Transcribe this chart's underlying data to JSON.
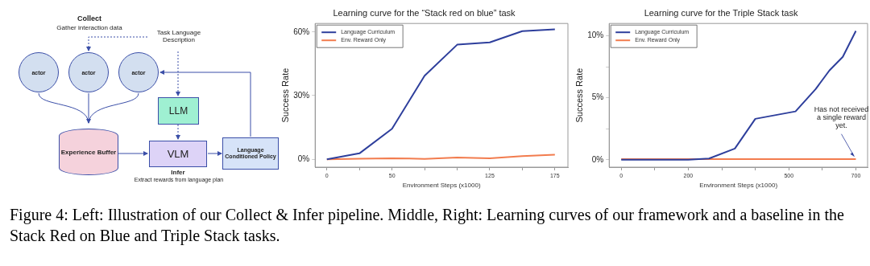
{
  "chart_data": [
    {
      "type": "other",
      "annotations": [
        "Collect",
        "Gather interaction data",
        "Task Language Description",
        "actor",
        "actor",
        "actor",
        "LLM",
        "Experience Buffer",
        "VLM",
        "Language Conditioned Policy",
        "Infer",
        "Extract rewards from language plan",
        "Figure 4: Left: Illustration of our Collect & Infer pipeline. Middle, Right: Learning curves of our framework and a baseline in the Stack Red on Blue and Triple Stack tasks."
      ]
    },
    {
      "type": "line",
      "title": "Learning curve for the “Stack red on blue” task",
      "xlabel": "Environment Steps (x1000)",
      "ylabel": "Success Rate",
      "legend": "top left",
      "marker": "none",
      "line_style": "solid",
      "grid": false,
      "xlim": [
        -9,
        185
      ],
      "xticks": [
        0,
        {
          "value": 25,
          "label": null
        },
        50,
        {
          "value": 75,
          "label": null
        },
        {
          "value": 100,
          "label": null
        },
        125,
        {
          "value": 150,
          "label": null
        },
        175
      ],
      "ylim": [
        -3.7,
        64
      ],
      "yticks": [
        {
          "value": 0,
          "label": "0%"
        },
        {
          "value": 30,
          "label": "30%"
        },
        {
          "value": 60,
          "label": "60%"
        }
      ],
      "x": [
        0,
        25,
        50,
        75,
        100,
        125,
        150,
        175
      ],
      "series": [
        {
          "name": "Language Curriculum",
          "color": "#2e3f9c",
          "values": [
            0,
            2.8,
            14.4,
            39.4,
            54,
            55.1,
            60.4,
            61.2
          ]
        },
        {
          "name": "Env. Reward Only",
          "color": "#f27c4e",
          "values": [
            0,
            0.3,
            0.5,
            0.2,
            0.8,
            0.5,
            1.5,
            2.2
          ]
        }
      ]
    },
    {
      "type": "line",
      "title": "Learning curve for the Triple Stack task",
      "xlabel": "Environment Steps (x1000)",
      "ylabel": "Success Rate",
      "legend": "top left",
      "marker": "none",
      "line_style": "solid",
      "grid": false,
      "xlim": [
        -36,
        735
      ],
      "xticks": [
        0,
        {
          "value": 100,
          "label": null
        },
        200,
        {
          "value": 300,
          "label": null
        },
        {
          "value": 400,
          "label": null
        },
        500,
        {
          "value": 600,
          "label": null
        },
        700
      ],
      "ylim": [
        -0.6,
        11
      ],
      "yticks": [
        {
          "value": 0,
          "label": "0%"
        },
        {
          "value": 2.5,
          "label": null
        },
        {
          "value": 5,
          "label": "5%"
        },
        {
          "value": 7.5,
          "label": null
        },
        {
          "value": 10,
          "label": "10%"
        }
      ],
      "series": [
        {
          "name": "Language Curriculum",
          "color": "#2e3f9c",
          "x": [
            0,
            200,
            262,
            339,
            400,
            520,
            580,
            621,
            661,
            700
          ],
          "values": [
            0,
            0,
            0.1,
            0.9,
            3.3,
            3.9,
            5.7,
            7.2,
            8.3,
            10.4
          ]
        },
        {
          "name": "Env. Reward Only",
          "color": "#f27c4e",
          "x": [
            0,
            700
          ],
          "values": [
            0.05,
            0.05
          ]
        }
      ],
      "annotations": [
        {
          "text": "Has not received a single reward yet.",
          "x": 700,
          "y": 0
        }
      ]
    }
  ]
}
